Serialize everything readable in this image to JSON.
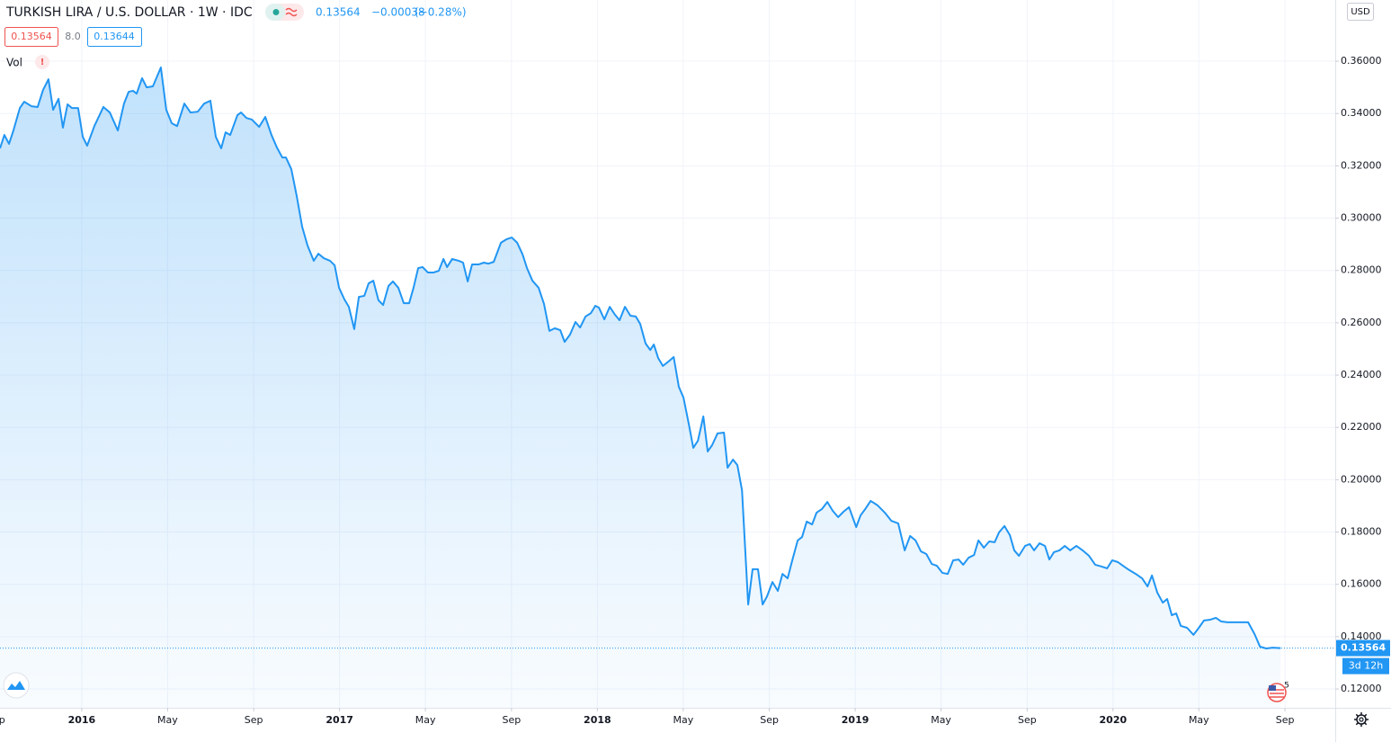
{
  "header": {
    "symbol": "TURKISH LIRA / U.S. DOLLAR · 1W · IDC",
    "price": "0.13564",
    "change": "−0.00038",
    "change_pct": "(−0.28%)",
    "bid": "0.13564",
    "spread": "8.0",
    "ask": "0.13644",
    "volume_label": "Vol",
    "volume_warning": "!"
  },
  "currency": "USD",
  "events_badge": "5",
  "chart_data": {
    "type": "area",
    "price_tag": "0.13564",
    "countdown": "3d 12h",
    "xlim": [
      2015.683,
      2020.862
    ],
    "ylim": [
      0.1128,
      0.3834
    ],
    "grid": true,
    "xticks": [
      {
        "value": 2015.667,
        "label": "Sep"
      },
      {
        "value": 2016,
        "label": "2016"
      },
      {
        "value": 2016.333,
        "label": "May"
      },
      {
        "value": 2016.667,
        "label": "Sep"
      },
      {
        "value": 2017,
        "label": "2017"
      },
      {
        "value": 2017.333,
        "label": "May"
      },
      {
        "value": 2017.667,
        "label": "Sep"
      },
      {
        "value": 2018,
        "label": "2018"
      },
      {
        "value": 2018.333,
        "label": "May"
      },
      {
        "value": 2018.667,
        "label": "Sep"
      },
      {
        "value": 2019,
        "label": "2019"
      },
      {
        "value": 2019.333,
        "label": "May"
      },
      {
        "value": 2019.667,
        "label": "Sep"
      },
      {
        "value": 2020,
        "label": "2020"
      },
      {
        "value": 2020.333,
        "label": "May"
      },
      {
        "value": 2020.667,
        "label": "Sep"
      }
    ],
    "yticks": [
      {
        "value": 0.12,
        "label": "0.12000"
      },
      {
        "value": 0.14,
        "label": "0.14000"
      },
      {
        "value": 0.16,
        "label": "0.16000"
      },
      {
        "value": 0.18,
        "label": "0.18000"
      },
      {
        "value": 0.2,
        "label": "0.20000"
      },
      {
        "value": 0.22,
        "label": "0.22000"
      },
      {
        "value": 0.24,
        "label": "0.24000"
      },
      {
        "value": 0.26,
        "label": "0.26000"
      },
      {
        "value": 0.28,
        "label": "0.28000"
      },
      {
        "value": 0.3,
        "label": "0.30000"
      },
      {
        "value": 0.32,
        "label": "0.32000"
      },
      {
        "value": 0.34,
        "label": "0.34000"
      },
      {
        "value": 0.36,
        "label": "0.36000"
      }
    ],
    "series": [
      {
        "color": "#2196f3",
        "x": [
          2015.683,
          2015.7,
          2015.718,
          2015.735,
          2015.76,
          2015.777,
          2015.805,
          2015.829,
          2015.85,
          2015.871,
          2015.889,
          2015.91,
          2015.927,
          2015.945,
          2015.962,
          2015.986,
          2016.004,
          2016.021,
          2016.049,
          2016.084,
          2016.109,
          2016.14,
          2016.164,
          2016.182,
          2016.199,
          2016.213,
          2016.234,
          2016.252,
          2016.276,
          2016.307,
          2016.328,
          2016.349,
          2016.37,
          2016.398,
          2016.422,
          2016.45,
          2016.475,
          2016.499,
          2016.52,
          2016.541,
          2016.558,
          2016.576,
          2016.604,
          2016.618,
          2016.639,
          2016.66,
          2016.688,
          2016.712,
          2016.736,
          2016.757,
          2016.778,
          2016.792,
          2016.813,
          2016.834,
          2016.855,
          2016.876,
          2016.9,
          2016.918,
          2016.939,
          2016.963,
          2016.981,
          2016.998,
          2017.019,
          2017.036,
          2017.057,
          2017.075,
          2017.096,
          2017.113,
          2017.131,
          2017.151,
          2017.169,
          2017.19,
          2017.207,
          2017.228,
          2017.249,
          2017.27,
          2017.287,
          2017.305,
          2017.322,
          2017.343,
          2017.364,
          2017.385,
          2017.403,
          2017.417,
          2017.437,
          2017.462,
          2017.479,
          2017.497,
          2017.514,
          2017.539,
          2017.56,
          2017.577,
          2017.598,
          2017.626,
          2017.647,
          2017.668,
          2017.689,
          2017.71,
          2017.727,
          2017.748,
          2017.772,
          2017.793,
          2017.814,
          2017.835,
          2017.856,
          2017.873,
          2017.894,
          2017.915,
          2017.933,
          2017.954,
          2017.975,
          2017.992,
          2018.006,
          2018.027,
          2018.048,
          2018.069,
          2018.086,
          2018.107,
          2018.128,
          2018.149,
          2018.166,
          2018.187,
          2018.205,
          2018.219,
          2018.236,
          2018.254,
          2018.271,
          2018.296,
          2018.316,
          2018.334,
          2018.355,
          2018.372,
          2018.39,
          2018.411,
          2018.428,
          2018.445,
          2018.466,
          2018.491,
          2018.505,
          2018.526,
          2018.543,
          2018.561,
          2018.585,
          2018.602,
          2018.623,
          2018.641,
          2018.658,
          2018.679,
          2018.7,
          2018.718,
          2018.738,
          2018.756,
          2018.777,
          2018.794,
          2018.812,
          2018.833,
          2018.85,
          2018.871,
          2018.892,
          2018.913,
          2018.934,
          2018.955,
          2018.976,
          2019.004,
          2019.021,
          2019.039,
          2019.06,
          2019.087,
          2019.115,
          2019.14,
          2019.167,
          2019.192,
          2019.213,
          2019.234,
          2019.255,
          2019.276,
          2019.297,
          2019.317,
          2019.338,
          2019.359,
          2019.38,
          2019.401,
          2019.419,
          2019.44,
          2019.461,
          2019.478,
          2019.499,
          2019.52,
          2019.541,
          2019.558,
          2019.579,
          2019.6,
          2019.617,
          2019.635,
          2019.659,
          2019.677,
          2019.694,
          2019.715,
          2019.736,
          2019.753,
          2019.771,
          2019.792,
          2019.813,
          2019.834,
          2019.858,
          2019.882,
          2019.907,
          2019.931,
          2019.956,
          2019.977,
          2019.997,
          2020.019,
          2020.043,
          2020.064,
          2020.088,
          2020.113,
          2020.134,
          2020.151,
          2020.172,
          2020.193,
          2020.21,
          2020.228,
          2020.245,
          2020.263,
          2020.287,
          2020.312,
          2020.333,
          2020.353,
          2020.378,
          2020.399,
          2020.42,
          2020.444,
          2020.496,
          2020.524,
          2020.549,
          2020.57,
          2020.594,
          2020.619,
          2020.65
        ],
        "values": [
          0.3267,
          0.3318,
          0.3284,
          0.3335,
          0.3421,
          0.3445,
          0.3428,
          0.3425,
          0.349,
          0.3531,
          0.3414,
          0.3456,
          0.3346,
          0.3435,
          0.3421,
          0.3421,
          0.3311,
          0.3277,
          0.3352,
          0.3425,
          0.3404,
          0.3335,
          0.3438,
          0.3483,
          0.3487,
          0.3476,
          0.3535,
          0.35,
          0.3504,
          0.3576,
          0.3414,
          0.3363,
          0.3352,
          0.3438,
          0.3404,
          0.3407,
          0.3438,
          0.3449,
          0.3311,
          0.3267,
          0.3328,
          0.3318,
          0.3394,
          0.3404,
          0.3383,
          0.3377,
          0.3349,
          0.3387,
          0.3318,
          0.327,
          0.3232,
          0.3232,
          0.3187,
          0.3084,
          0.2967,
          0.2895,
          0.2837,
          0.2864,
          0.2847,
          0.2837,
          0.282,
          0.2734,
          0.2689,
          0.2661,
          0.2576,
          0.2699,
          0.2703,
          0.2751,
          0.2761,
          0.2686,
          0.2668,
          0.2741,
          0.2758,
          0.2734,
          0.2675,
          0.2675,
          0.2734,
          0.2809,
          0.2813,
          0.2792,
          0.2792,
          0.2799,
          0.2844,
          0.2813,
          0.2844,
          0.2837,
          0.283,
          0.2758,
          0.2823,
          0.2823,
          0.283,
          0.2826,
          0.2833,
          0.2906,
          0.2919,
          0.2926,
          0.2906,
          0.2861,
          0.2809,
          0.2761,
          0.2734,
          0.2672,
          0.2569,
          0.2579,
          0.2572,
          0.2527,
          0.2555,
          0.2603,
          0.2582,
          0.2624,
          0.2637,
          0.2665,
          0.2658,
          0.2613,
          0.2661,
          0.263,
          0.261,
          0.2661,
          0.2627,
          0.2624,
          0.2596,
          0.2521,
          0.2496,
          0.2517,
          0.2465,
          0.2435,
          0.2448,
          0.2469,
          0.2355,
          0.2314,
          0.2211,
          0.2122,
          0.2149,
          0.2242,
          0.2108,
          0.2132,
          0.2177,
          0.218,
          0.2046,
          0.2077,
          0.2056,
          0.196,
          0.1523,
          0.1658,
          0.1658,
          0.1523,
          0.1554,
          0.1609,
          0.1575,
          0.164,
          0.1623,
          0.1692,
          0.1768,
          0.1781,
          0.184,
          0.1829,
          0.1874,
          0.1888,
          0.1915,
          0.1881,
          0.1857,
          0.1878,
          0.1895,
          0.1819,
          0.1864,
          0.1888,
          0.1919,
          0.1902,
          0.1874,
          0.1843,
          0.1833,
          0.173,
          0.1785,
          0.1768,
          0.1726,
          0.1716,
          0.1678,
          0.1671,
          0.1644,
          0.164,
          0.1692,
          0.1695,
          0.1675,
          0.1702,
          0.1712,
          0.1768,
          0.174,
          0.1764,
          0.1761,
          0.1799,
          0.1823,
          0.1788,
          0.173,
          0.1709,
          0.1747,
          0.1754,
          0.173,
          0.1757,
          0.1747,
          0.1695,
          0.1723,
          0.173,
          0.1747,
          0.173,
          0.1747,
          0.173,
          0.1709,
          0.1675,
          0.1668,
          0.1661,
          0.1692,
          0.1685,
          0.1668,
          0.1654,
          0.164,
          0.1623,
          0.1592,
          0.1634,
          0.1568,
          0.153,
          0.1544,
          0.1482,
          0.1489,
          0.1441,
          0.1434,
          0.1407,
          0.1434,
          0.1462,
          0.1465,
          0.1472,
          0.1458,
          0.1455,
          0.1455,
          0.1455,
          0.141,
          0.1362,
          0.1355,
          0.1358,
          0.13564
        ]
      }
    ]
  }
}
